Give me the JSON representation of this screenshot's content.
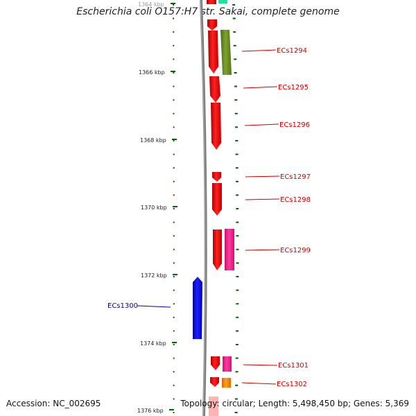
{
  "title": "Escherichia coli O157:H7 str. Sakai, complete genome",
  "accession": "Accession: NC_002695",
  "topology": "Topology: circular; Length: 5,498,450 bp; Genes: 5,369",
  "kbp_labels": [
    "1364 kbp",
    "1366 kbp",
    "1368 kbp",
    "1370 kbp",
    "1372 kbp",
    "1374 kbp",
    "1376 kbp"
  ],
  "genes": [
    {
      "label": "ECs1294",
      "strand": "forward",
      "color": "#cc0000"
    },
    {
      "label": "ECs1295",
      "strand": "forward",
      "color": "#cc0000"
    },
    {
      "label": "ECs1296",
      "strand": "forward",
      "color": "#cc0000"
    },
    {
      "label": "ECs1297",
      "strand": "forward",
      "color": "#cc0000"
    },
    {
      "label": "ECs1298",
      "strand": "forward",
      "color": "#cc0000"
    },
    {
      "label": "ECs1299",
      "strand": "forward",
      "color": "#cc0000"
    },
    {
      "label": "ECs1300",
      "strand": "reverse",
      "color": "#0000aa"
    },
    {
      "label": "ECs1301",
      "strand": "forward",
      "color": "#cc0000"
    },
    {
      "label": "ECs1302",
      "strand": "forward",
      "color": "#cc0000"
    }
  ],
  "colors": {
    "forward_gene": "#ff0000",
    "reverse_gene": "#0000ff",
    "cog_green": "#6b8e23",
    "cog_pink": "#ff1493",
    "cog_orange": "#ff8c00",
    "cog_teal": "#20e0a0",
    "tick": "#006400",
    "backbone": "#808080"
  }
}
